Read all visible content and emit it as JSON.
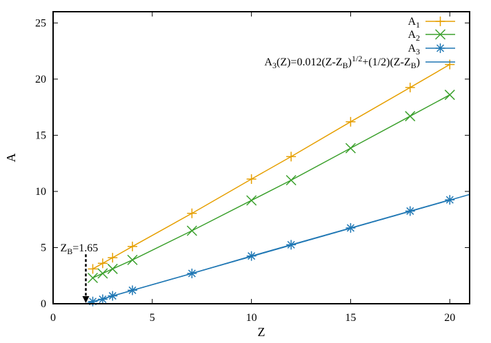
{
  "chart_data": {
    "type": "line",
    "title": "",
    "xlabel": "Z",
    "ylabel": "A",
    "xlim": [
      0,
      21
    ],
    "ylim": [
      0,
      26
    ],
    "xticks": [
      "0",
      "5",
      "10",
      "15",
      "20"
    ],
    "xtick_values": [
      0,
      5,
      10,
      15,
      20
    ],
    "yticks": [
      "0",
      "5",
      "10",
      "15",
      "20",
      "25"
    ],
    "ytick_values": [
      0,
      5,
      10,
      15,
      20,
      25
    ],
    "grid": false,
    "legend_position": "top-right",
    "series": [
      {
        "name_base": "A",
        "name_sub": "1",
        "marker": "plus",
        "color": "#E69F00",
        "x": [
          2,
          2.5,
          3,
          4,
          7,
          10,
          12,
          15,
          18,
          20
        ],
        "values": [
          3.1,
          3.6,
          4.1,
          5.1,
          8.05,
          11.1,
          13.1,
          16.2,
          19.25,
          21.3
        ]
      },
      {
        "name_base": "A",
        "name_sub": "2",
        "marker": "cross",
        "color": "#3BA02C",
        "x": [
          2,
          2.5,
          3,
          4,
          7,
          10,
          12,
          15,
          18,
          20
        ],
        "values": [
          2.3,
          2.7,
          3.1,
          3.9,
          6.5,
          9.2,
          11.0,
          13.85,
          16.7,
          18.6
        ]
      },
      {
        "name_base": "A",
        "name_sub": "3",
        "marker": "star",
        "color": "#1F77B4",
        "x": [
          2,
          2.5,
          3,
          4,
          7,
          10,
          12,
          15,
          18,
          20
        ],
        "values": [
          0.2,
          0.4,
          0.7,
          1.2,
          2.7,
          4.25,
          5.25,
          6.75,
          8.25,
          9.25
        ]
      },
      {
        "name_formula": "A₃(Z)=0.012(Z-Z_B)^{1/2}+(1/2)(Z-Z_B)",
        "marker": "none",
        "color": "#1F77B4",
        "fit": {
          "a": 0.012,
          "b": 0.5,
          "zb": 1.65,
          "xmax": 21
        }
      }
    ],
    "annotations": [
      {
        "text_base": "Z",
        "text_sub": "B",
        "text_rest": "=1.65",
        "x": 1.65,
        "arrow_from_y": 4.4,
        "arrow_to_y": 0
      }
    ]
  }
}
